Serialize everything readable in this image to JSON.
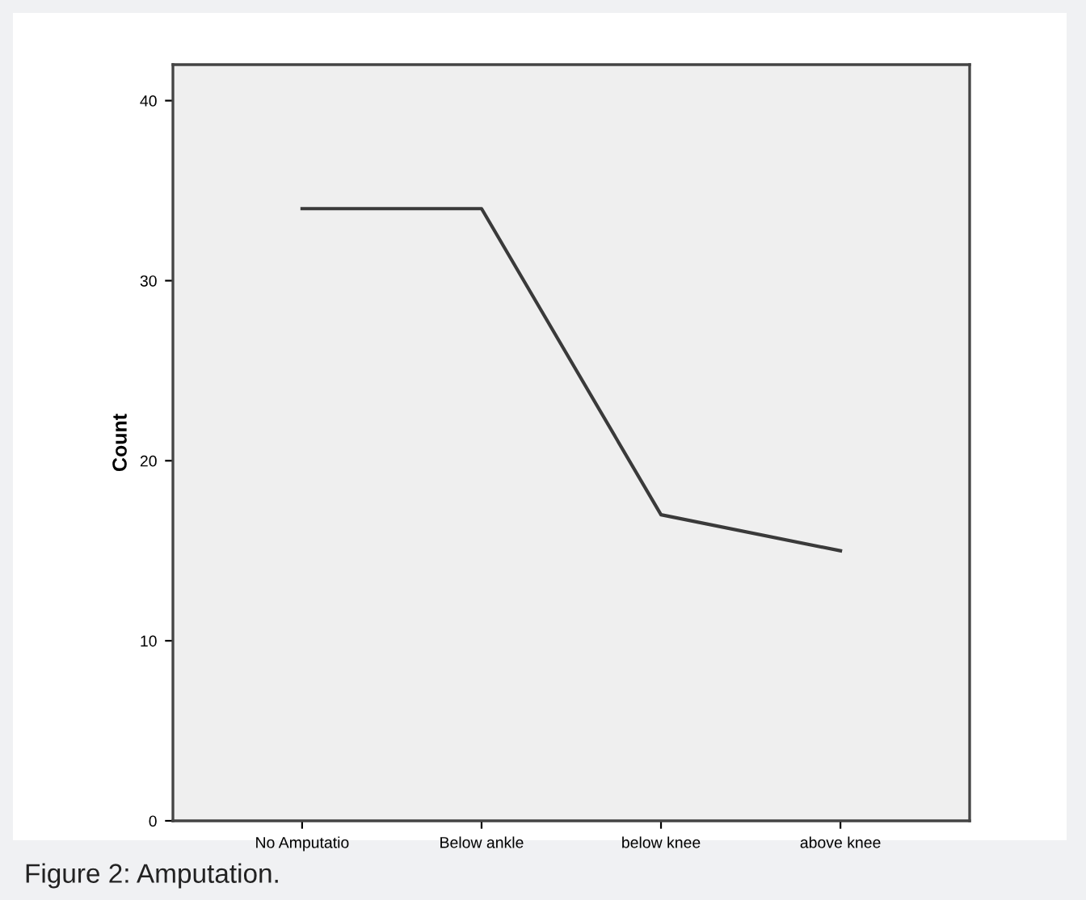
{
  "chart_data": {
    "type": "line",
    "ylabel": "Count",
    "categories": [
      "No Amputatio",
      "Below ankle",
      "below knee",
      "above knee"
    ],
    "series": [
      {
        "color": "#3a3a3a",
        "values": [
          34,
          34,
          17,
          15
        ]
      }
    ],
    "ylim": [
      0,
      42
    ],
    "yticks": [
      0,
      10,
      20,
      30,
      40
    ],
    "grid": false,
    "legend": false,
    "annotations": [
      "Figure 2: Amputation."
    ]
  }
}
